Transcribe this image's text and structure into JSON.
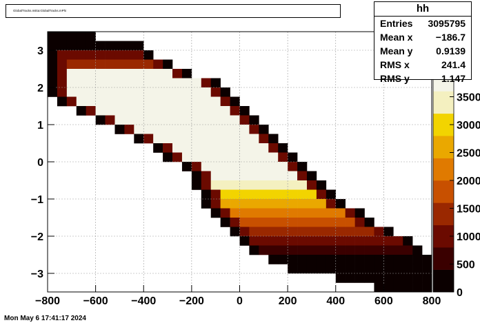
{
  "title_text": "GlobalTracks.mEta:GlobalTracks.mPhi",
  "footer_text": "Mon May  6 17:41:17 2024",
  "stats": {
    "name": "hh",
    "rows": [
      {
        "label": "Entries",
        "value": "3095795"
      },
      {
        "label": "Mean x",
        "value": "−186.7"
      },
      {
        "label": "Mean y",
        "value": "0.9139"
      },
      {
        "label": "RMS x",
        "value": "241.4"
      },
      {
        "label": "RMS y",
        "value": "1.147"
      }
    ]
  },
  "chart_data": {
    "type": "heatmap",
    "title": "",
    "xlabel": "",
    "ylabel": "",
    "xlim": [
      -800,
      800
    ],
    "ylim": [
      -3.5,
      3.5
    ],
    "x_ticks": [
      -800,
      -600,
      -400,
      -200,
      0,
      200,
      400,
      600,
      800
    ],
    "y_ticks": [
      -3,
      -2,
      -1,
      0,
      1,
      2,
      3
    ],
    "x_tick_labels": [
      "−800",
      "−600",
      "−400",
      "−200",
      "0",
      "200",
      "400",
      "600",
      "800"
    ],
    "y_tick_labels": [
      "−3",
      "−2",
      "−1",
      "0",
      "1",
      "2",
      "3"
    ],
    "z_ticks": [
      0,
      500,
      1000,
      1500,
      2000,
      2500,
      3000,
      3500
    ],
    "z_tick_labels": [
      "0",
      "500",
      "1000",
      "1500",
      "2000",
      "2500",
      "3000",
      "3500"
    ],
    "z_max": 4000,
    "color_stops": [
      "#0b0000",
      "#3a0000",
      "#6b0a00",
      "#9a2800",
      "#c85000",
      "#e07a00",
      "#eaa800",
      "#f2d400",
      "#f4f0c0",
      "#f4f4e8"
    ],
    "bins": {
      "nx": 40,
      "ny": 28
    },
    "rows": [
      {
        "y": 3.375,
        "x0": -800,
        "x1": -600,
        "z": 200
      },
      {
        "y": 3.125,
        "x0": -800,
        "x1": -400,
        "z": 350
      },
      {
        "y": 2.875,
        "x0": -800,
        "x1": -360,
        "z": 900
      },
      {
        "y": 2.625,
        "x0": -800,
        "x1": -280,
        "z": 1600
      },
      {
        "y": 2.375,
        "x0": -800,
        "x1": -200,
        "z": 4000
      },
      {
        "y": 2.125,
        "x0": -800,
        "x1": -80,
        "z": 4000
      },
      {
        "y": 1.875,
        "x0": -800,
        "x1": -40,
        "z": 4000
      },
      {
        "y": 1.625,
        "x0": -760,
        "x1": 0,
        "z": 4000
      },
      {
        "y": 1.375,
        "x0": -680,
        "x1": 40,
        "z": 4000
      },
      {
        "y": 1.125,
        "x0": -600,
        "x1": 80,
        "z": 4000
      },
      {
        "y": 0.875,
        "x0": -520,
        "x1": 120,
        "z": 4000
      },
      {
        "y": 0.625,
        "x0": -440,
        "x1": 160,
        "z": 4000
      },
      {
        "y": 0.375,
        "x0": -360,
        "x1": 200,
        "z": 4000
      },
      {
        "y": 0.125,
        "x0": -320,
        "x1": 240,
        "z": 4000
      },
      {
        "y": -0.125,
        "x0": -240,
        "x1": 280,
        "z": 4000
      },
      {
        "y": -0.375,
        "x0": -200,
        "x1": 320,
        "z": 4000
      },
      {
        "y": -0.625,
        "x0": -200,
        "x1": 360,
        "z": 3600
      },
      {
        "y": -0.875,
        "x0": -160,
        "x1": 400,
        "z": 3200
      },
      {
        "y": -1.125,
        "x0": -160,
        "x1": 440,
        "z": 2800
      },
      {
        "y": -1.375,
        "x0": -120,
        "x1": 520,
        "z": 2400
      },
      {
        "y": -1.625,
        "x0": -80,
        "x1": 560,
        "z": 2000
      },
      {
        "y": -1.875,
        "x0": -40,
        "x1": 640,
        "z": 1600
      },
      {
        "y": -2.125,
        "x0": 0,
        "x1": 720,
        "z": 1000
      },
      {
        "y": -2.375,
        "x0": 40,
        "x1": 760,
        "z": 600
      },
      {
        "y": -2.625,
        "x0": 120,
        "x1": 800,
        "z": 350
      },
      {
        "y": -2.875,
        "x0": 200,
        "x1": 800,
        "z": 200
      },
      {
        "y": -3.125,
        "x0": 400,
        "x1": 800,
        "z": 120
      },
      {
        "y": -3.375,
        "x0": 560,
        "x1": 800,
        "z": 80
      }
    ]
  }
}
